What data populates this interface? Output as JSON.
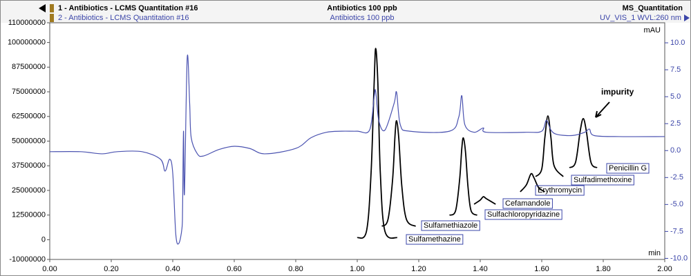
{
  "chart_data": {
    "type": "line",
    "traces": [
      {
        "label": "1 - Antibiotics - LCMS Quantitation #16",
        "sample": "Antibiotics 100 ppb",
        "detector": "MS_Quantitation"
      },
      {
        "label": "2 - Antibiotics - LCMS Quantitation #16",
        "sample": "Antibiotics 100 ppb",
        "detector": "UV_VIS_1 WVL:260 nm"
      }
    ],
    "y2_unit": "mAU",
    "x_unit": "min",
    "annotation": "impurity",
    "xlim": [
      0,
      2
    ],
    "xticks": [
      {
        "value": 0,
        "label": "0.00"
      },
      {
        "value": 0.2,
        "label": "0.20"
      },
      {
        "value": 0.4,
        "label": "0.40"
      },
      {
        "value": 0.6,
        "label": "0.60"
      },
      {
        "value": 0.8,
        "label": "0.80"
      },
      {
        "value": 1.0,
        "label": "1.00"
      },
      {
        "value": 1.2,
        "label": "1.20"
      },
      {
        "value": 1.4,
        "label": "1.40"
      },
      {
        "value": 1.6,
        "label": "1.60"
      },
      {
        "value": 1.8,
        "label": "1.80"
      },
      {
        "value": 2.0,
        "label": "2.00"
      }
    ],
    "ylim": [
      -10000000,
      110000000
    ],
    "yticks": [
      110000000,
      100000000,
      87500000,
      75000000,
      62500000,
      50000000,
      37500000,
      25000000,
      12500000,
      0,
      -10000000
    ],
    "y2lim": [
      -10.1,
      11.86
    ],
    "y2ticks": [
      {
        "value": 10,
        "label": "10.0"
      },
      7.5,
      {
        "value": 5,
        "label": "5.0"
      },
      2.5,
      {
        "value": 0,
        "label": "0.0"
      },
      -2.5,
      {
        "value": -5,
        "label": "-5.0"
      },
      -7.5,
      {
        "value": -10,
        "label": "-10.0"
      }
    ],
    "series": [
      {
        "name": "Sulfamethazine",
        "color": "#000000",
        "x": [
          1.0,
          1.03,
          1.045,
          1.055,
          1.06,
          1.067,
          1.075,
          1.09,
          1.13
        ],
        "values": [
          1000000,
          4300000,
          34000000,
          79600000,
          97000000,
          79600000,
          34000000,
          4300000,
          1000000
        ]
      },
      {
        "name": "Sulfamethiazole",
        "color": "#000000",
        "x": [
          1.08,
          1.1,
          1.115,
          1.123,
          1.128,
          1.135,
          1.145,
          1.16,
          1.19
        ],
        "values": [
          6800000,
          10300000,
          30600000,
          53300000,
          60300000,
          51600000,
          27100000,
          10300000,
          6800000
        ]
      },
      {
        "name": "Sulfachloropyridazine",
        "color": "#000000",
        "x": [
          1.3,
          1.32,
          1.333,
          1.34,
          1.345,
          1.352,
          1.36,
          1.37,
          1.39
        ],
        "values": [
          12400000,
          14800000,
          30600000,
          46300000,
          51600000,
          44600000,
          27100000,
          14800000,
          12400000
        ]
      },
      {
        "name": "Cefamandole",
        "color": "#000000",
        "x": [
          1.38,
          1.4,
          1.41,
          1.42,
          1.45
        ],
        "values": [
          18000000,
          20100000,
          21800000,
          20800000,
          18000000
        ]
      },
      {
        "name": "Erythromycin",
        "color": "#000000",
        "x": [
          1.53,
          1.55,
          1.565,
          1.575,
          1.59,
          1.61
        ],
        "values": [
          24300000,
          27800000,
          33400000,
          31300000,
          26400000,
          24300000
        ]
      },
      {
        "name": "Sulfadimethoxine",
        "color": "#000000",
        "x": [
          1.58,
          1.6,
          1.61,
          1.62,
          1.63,
          1.64,
          1.67
        ],
        "values": [
          32000000,
          35800000,
          51600000,
          62800000,
          51600000,
          37600000,
          32000000
        ]
      },
      {
        "name": "Penicillin G",
        "color": "#000000",
        "x": [
          1.69,
          1.71,
          1.725,
          1.735,
          1.745,
          1.76,
          1.78
        ],
        "values": [
          36500000,
          39300000,
          55100000,
          61400000,
          55100000,
          39300000,
          36500000
        ]
      },
      {
        "color": "#4a52b0",
        "axis": "y2",
        "x": [
          0,
          0.1,
          0.17,
          0.22,
          0.3,
          0.36,
          0.375,
          0.39,
          0.4,
          0.41,
          0.42,
          0.43,
          0.432,
          0.435,
          0.438,
          0.447,
          0.455,
          0.46,
          0.48,
          0.5,
          0.55,
          0.6,
          0.65,
          0.7,
          0.8,
          0.85,
          0.9,
          0.95,
          1.0,
          1.04,
          1.055,
          1.06,
          1.07,
          1.09,
          1.12,
          1.128,
          1.14,
          1.17,
          1.3,
          1.33,
          1.34,
          1.35,
          1.38,
          1.41,
          1.42,
          1.55,
          1.6,
          1.615,
          1.63,
          1.65,
          1.7,
          1.74,
          1.755,
          1.77,
          1.85,
          2.0
        ],
        "values": [
          -0.1,
          -0.1,
          -0.3,
          -0.1,
          -0.1,
          -0.8,
          -1.9,
          -0.8,
          -2.1,
          -7.8,
          -8.6,
          -7.2,
          -5.3,
          1.8,
          -4.0,
          8.6,
          4.4,
          1.2,
          -0.3,
          -0.5,
          0.1,
          0.4,
          0.2,
          -0.3,
          0.2,
          1.2,
          1.7,
          1.8,
          1.8,
          1.9,
          5.0,
          5.5,
          2.8,
          1.9,
          4.4,
          5.4,
          2.4,
          1.8,
          1.8,
          3.1,
          5.1,
          2.4,
          1.7,
          2.1,
          1.7,
          1.7,
          1.8,
          2.8,
          1.9,
          1.5,
          1.4,
          1.7,
          2.0,
          1.4,
          1.3,
          1.3
        ]
      }
    ]
  }
}
